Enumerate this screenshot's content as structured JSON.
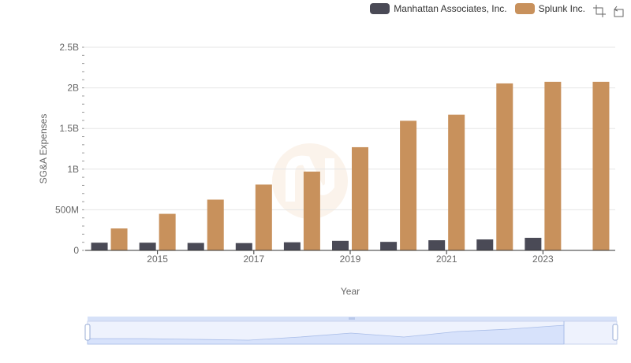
{
  "legend": {
    "items": [
      {
        "name": "Manhattan Associates, Inc.",
        "color": "#4a4a56"
      },
      {
        "name": "Splunk Inc.",
        "color": "#c8915c"
      }
    ]
  },
  "toolbox": {
    "icons": [
      "zoom-icon",
      "restore-icon"
    ]
  },
  "chart_data": {
    "type": "bar",
    "title": "",
    "xlabel": "Year",
    "ylabel": "SG&A Expenses",
    "categories": [
      "2014",
      "2015",
      "2016",
      "2017",
      "2018",
      "2019",
      "2020",
      "2021",
      "2022",
      "2023",
      "2024"
    ],
    "x_tick_labels": [
      "2015",
      "2017",
      "2019",
      "2021",
      "2023"
    ],
    "y_tick_labels": [
      "0",
      "500M",
      "1B",
      "1.5B",
      "2B",
      "2.5B"
    ],
    "ylim": [
      0,
      2500000000
    ],
    "grid": true,
    "legend_position": "top-right",
    "series": [
      {
        "name": "Manhattan Associates, Inc.",
        "color": "#4a4a56",
        "values": [
          95000000,
          95000000,
          92000000,
          90000000,
          100000000,
          118000000,
          105000000,
          125000000,
          135000000,
          155000000,
          null
        ]
      },
      {
        "name": "Splunk Inc.",
        "color": "#c8915c",
        "values": [
          270000000,
          450000000,
          625000000,
          810000000,
          970000000,
          1270000000,
          1595000000,
          1670000000,
          2055000000,
          2075000000,
          2075000000
        ]
      }
    ]
  }
}
